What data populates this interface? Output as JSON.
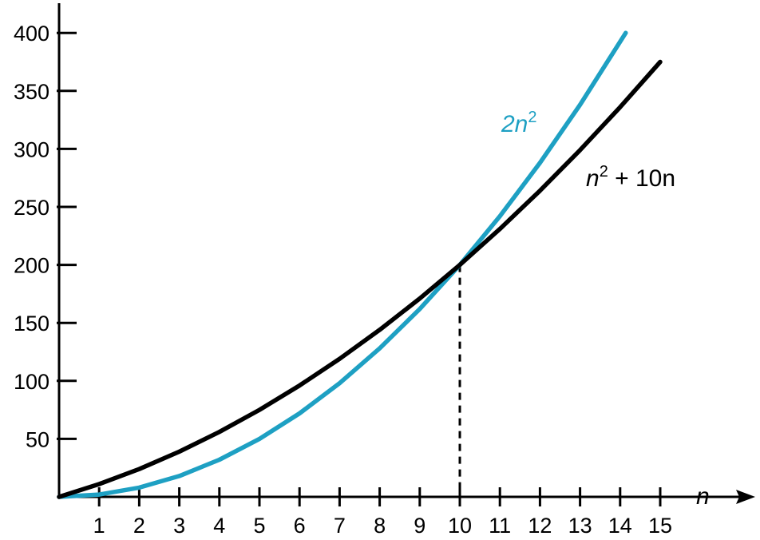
{
  "chart_data": {
    "type": "line",
    "title": "",
    "xlabel": "n",
    "ylabel": "",
    "xlim": [
      0,
      15
    ],
    "ylim": [
      0,
      400
    ],
    "grid": false,
    "x_ticks": [
      "1",
      "2",
      "3",
      "4",
      "5",
      "6",
      "7",
      "8",
      "9",
      "10",
      "11",
      "12",
      "13",
      "14",
      "15"
    ],
    "y_ticks": [
      "50",
      "100",
      "150",
      "200",
      "250",
      "300",
      "350",
      "400"
    ],
    "series": [
      {
        "label_main": "2n",
        "label_sup": "2",
        "color": "#1ea0c3",
        "x": [
          0,
          1,
          2,
          3,
          4,
          5,
          6,
          7,
          8,
          9,
          10,
          11,
          12,
          13,
          14.14
        ],
        "values": [
          0,
          2,
          8,
          18,
          32,
          50,
          72,
          98,
          128,
          162,
          200,
          242,
          288,
          338,
          400
        ]
      },
      {
        "label_main": "n",
        "label_sup": "2",
        "label_tail": " + 10n",
        "color": "#000000",
        "x": [
          0,
          1,
          2,
          3,
          4,
          5,
          6,
          7,
          8,
          9,
          10,
          11,
          12,
          13,
          14,
          15
        ],
        "values": [
          0,
          11,
          24,
          39,
          56,
          75,
          96,
          119,
          144,
          171,
          200,
          231,
          264,
          299,
          336,
          375
        ]
      }
    ],
    "annotations": [
      {
        "type": "dashed-vline",
        "x": 10,
        "y_from": 0,
        "y_to": 200
      }
    ]
  }
}
